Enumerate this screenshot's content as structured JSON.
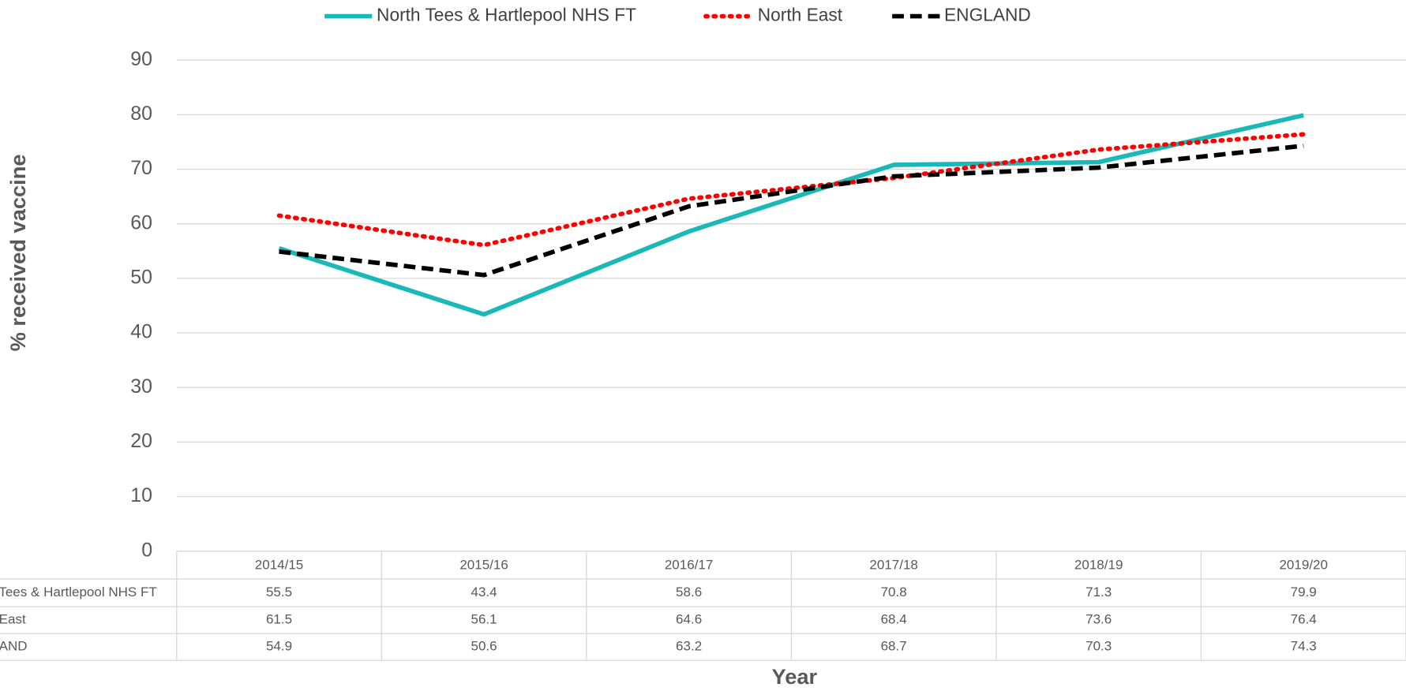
{
  "chart_data": {
    "type": "line",
    "y_label": "% received vaccine",
    "x_label": "Year",
    "categories": [
      "2014/15",
      "2015/16",
      "2016/17",
      "2017/18",
      "2018/19",
      "2019/20"
    ],
    "series": [
      {
        "name": "North Tees & Hartlepool NHS FT",
        "color": "#1bb8b8",
        "style": "solid",
        "values": [
          55.5,
          43.4,
          58.6,
          70.8,
          71.3,
          79.9
        ]
      },
      {
        "name": "North East",
        "color": "#ff0000",
        "style": "dotted",
        "values": [
          61.5,
          56.1,
          64.6,
          68.4,
          73.6,
          76.4
        ]
      },
      {
        "name": "ENGLAND",
        "color": "#000000",
        "style": "dashed",
        "values": [
          54.9,
          50.6,
          63.2,
          68.7,
          70.3,
          74.3
        ]
      }
    ],
    "ylim": [
      0,
      90
    ],
    "yticks": [
      0,
      10,
      20,
      30,
      40,
      50,
      60,
      70,
      80,
      90
    ],
    "grid": true,
    "legend": "top",
    "data_table": true
  }
}
